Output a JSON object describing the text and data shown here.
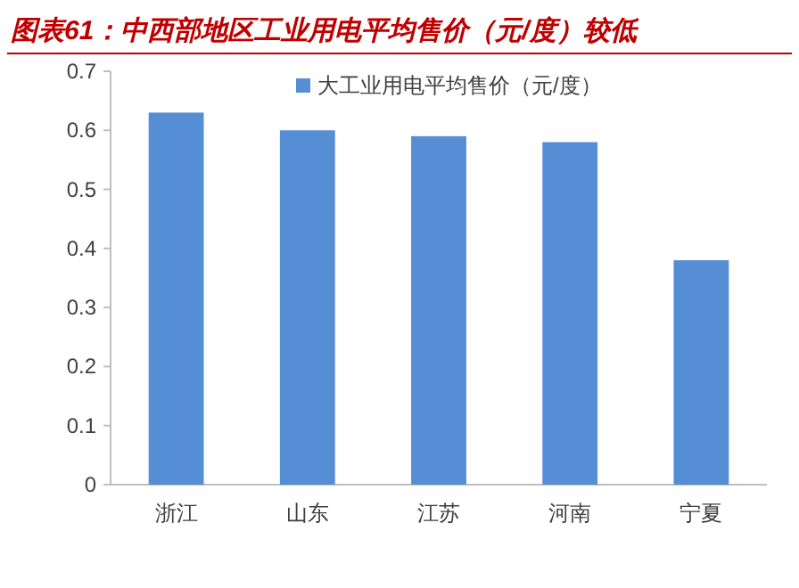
{
  "chart_data": {
    "type": "bar",
    "title": "图表61：中西部地区工业用电平均售价（元/度）较低",
    "categories": [
      "浙江",
      "山东",
      "江苏",
      "河南",
      "宁夏"
    ],
    "series": [
      {
        "name": "大工业用电平均售价（元/度）",
        "color": "#558ed5",
        "values": [
          0.63,
          0.6,
          0.59,
          0.58,
          0.38
        ]
      }
    ],
    "ylim": [
      0,
      0.7
    ],
    "yticks": [
      0,
      0.1,
      0.2,
      0.3,
      0.4,
      0.5,
      0.6,
      0.7
    ],
    "legend": "top"
  }
}
